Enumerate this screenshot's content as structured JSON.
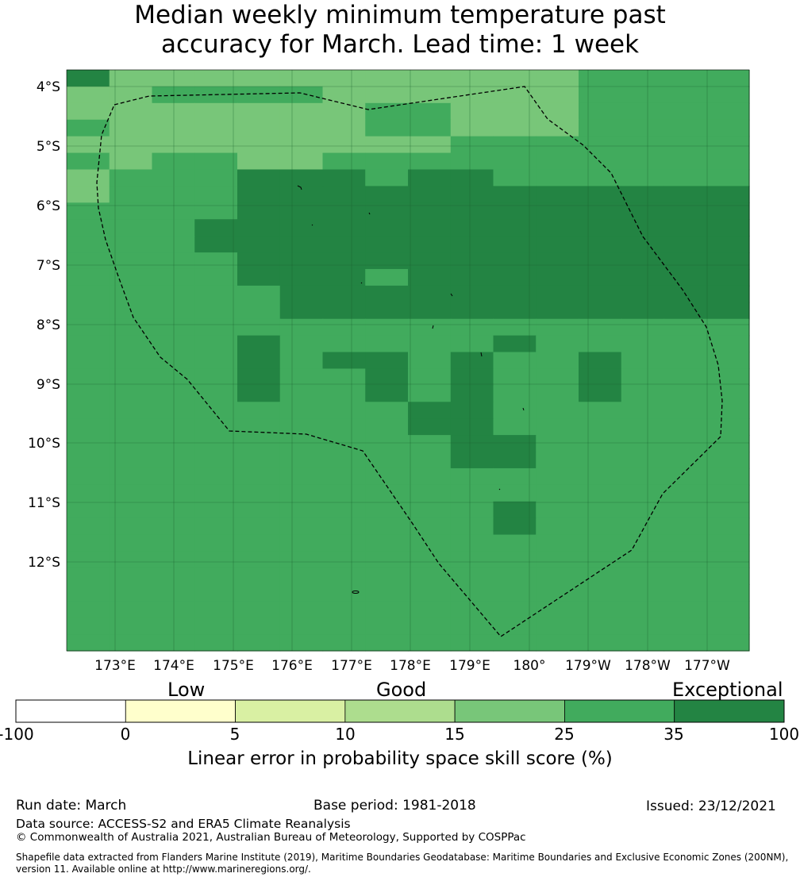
{
  "title": {
    "line1": "Median weekly minimum temperature past",
    "line2": "accuracy for March. Lead time: 1 week"
  },
  "map": {
    "lat_labels": [
      "4°S",
      "5°S",
      "6°S",
      "7°S",
      "8°S",
      "9°S",
      "10°S",
      "11°S",
      "12°S"
    ],
    "lon_labels": [
      "173°E",
      "174°E",
      "175°E",
      "176°E",
      "177°E",
      "178°E",
      "179°E",
      "180°",
      "179°W",
      "178°W",
      "177°W"
    ],
    "colors": {
      "c15": "#ace08f",
      "c25": "#78c679",
      "c35": "#41ab5d",
      "c100": "#238443",
      "grid": "#1a5f2d",
      "boundary": "#000000"
    },
    "grid_rows": [
      "2444444444443333",
      "4433334444443333",
      "4444444334443333",
      "3444444334443333",
      "4444444443333333",
      "3433443333333333",
      "4333222322333333",
      "4333222222222222",
      "3333222222222222",
      "3332222222222222",
      "3332222222222222",
      "3333222222222222",
      "3333222322222222",
      "3333322222222222",
      "3333322222222222",
      "3333333333333333",
      "3333233333233333",
      "3333232232332333",
      "3333233232332333",
      "3333233232332333",
      "3333333322333333",
      "3333333322333333",
      "3333333332233333",
      "3333333332233333",
      "3333333333333333",
      "3333333333333333",
      "3333333333233333",
      "3333333333233333",
      "3333333333333333",
      "3333333333333333",
      "3333333333333333",
      "3333333333333333",
      "3333333333333333",
      "3333333333333333",
      "3333333333333333"
    ]
  },
  "colorbar": {
    "categories": [
      "Low",
      "Good",
      "Exceptional"
    ],
    "ticks": [
      "-100",
      "0",
      "5",
      "10",
      "15",
      "25",
      "35",
      "100"
    ],
    "bins": [
      {
        "from": -100,
        "to": 0,
        "color": "#ffffff"
      },
      {
        "from": 0,
        "to": 5,
        "color": "#ffffcc"
      },
      {
        "from": 5,
        "to": 10,
        "color": "#d9f0a3"
      },
      {
        "from": 10,
        "to": 15,
        "color": "#addd8e"
      },
      {
        "from": 15,
        "to": 25,
        "color": "#78c679"
      },
      {
        "from": 25,
        "to": 35,
        "color": "#41ab5d"
      },
      {
        "from": 35,
        "to": 100,
        "color": "#238443"
      }
    ],
    "label": "Linear error in probability space skill score (%)"
  },
  "footer": {
    "run_date": "Run date: March",
    "base_period": "Base period: 1981-2018",
    "issued": "Issued: 23/12/2021",
    "data_source": "Data source: ACCESS-S2 and ERA5 Climate Reanalysis",
    "copyright": "© Commonwealth of Australia 2021, Australian Bureau of Meteorology, Supported by COSPPac",
    "shapefile_line1": "Shapefile data extracted from Flanders Marine Institute (2019), Maritime Boundaries Geodatabase: Maritime Boundaries and Exclusive Economic Zones (200NM),",
    "shapefile_line2": "version 11. Available online at http://www.marineregions.org/."
  }
}
